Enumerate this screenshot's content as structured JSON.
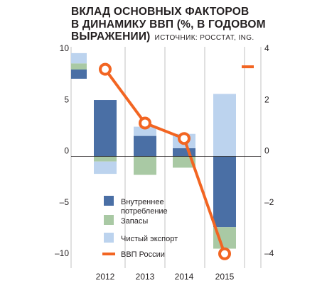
{
  "title": {
    "line1": "ВКЛАД ОСНОВНЫХ ФАКТОРОВ",
    "line2": "В ДИНАМИКУ ВВП (%, В ГОДОВОМ",
    "line3": "ВЫРАЖЕНИИ)",
    "source": "ИСТОЧНИК: РОССТАТ, ING."
  },
  "colors": {
    "consumption": "#4a6fa5",
    "inventories": "#a9c9a4",
    "net_exports": "#bcd3ee",
    "gdp": "#f26522",
    "axis": "#231f20",
    "grid": "#9a9a9a"
  },
  "chart_data": {
    "type": "bar",
    "stacked": true,
    "categories": [
      "2012",
      "2013",
      "2014",
      "2015"
    ],
    "series": [
      {
        "name": "Внутреннее потребление",
        "values": [
          5.5,
          2.0,
          0.8,
          -6.9
        ],
        "color": "#4a6fa5",
        "axis": "left"
      },
      {
        "name": "Запасы",
        "values": [
          -0.5,
          -1.8,
          -1.1,
          -2.1
        ],
        "color": "#a9c9a4",
        "axis": "left"
      },
      {
        "name": "Чистый экспорт",
        "values": [
          -1.2,
          0.9,
          1.4,
          6.1
        ],
        "color": "#bcd3ee",
        "axis": "left"
      },
      {
        "name": "ВВП России",
        "type": "line",
        "values": [
          3.4,
          1.3,
          0.7,
          -3.8
        ],
        "color": "#f26522",
        "axis": "right"
      }
    ],
    "left_axis": {
      "ylim": [
        -10,
        10
      ],
      "ticks": [
        "10",
        "5",
        "0",
        "–5",
        "–10"
      ],
      "tick_values": [
        10,
        5,
        0,
        -5,
        -10
      ]
    },
    "right_axis": {
      "ylim": [
        -4,
        4
      ],
      "ticks": [
        "4",
        "2",
        "0",
        "–2",
        "–4"
      ],
      "tick_values": [
        4,
        2,
        0,
        -2,
        -4
      ]
    },
    "legend_keys": {
      "bar_values_left": [
        -0.9,
        0.6,
        1.0
      ],
      "bar_colors": [
        "#4a6fa5",
        "#a9c9a4",
        "#bcd3ee"
      ],
      "line_value_right": 3.5
    },
    "legend": [
      {
        "label_lines": [
          "Внутреннее",
          "потребление"
        ],
        "kind": "box",
        "color": "#4a6fa5"
      },
      {
        "label_lines": [
          "Запасы"
        ],
        "kind": "box",
        "color": "#a9c9a4"
      },
      {
        "label_lines": [
          "Чистый экспорт"
        ],
        "kind": "box",
        "color": "#bcd3ee"
      },
      {
        "label_lines": [
          "ВВП России"
        ],
        "kind": "line",
        "color": "#f26522"
      }
    ],
    "legend_placement": "bottom-left inside plot",
    "grid": "vertical separators only"
  }
}
